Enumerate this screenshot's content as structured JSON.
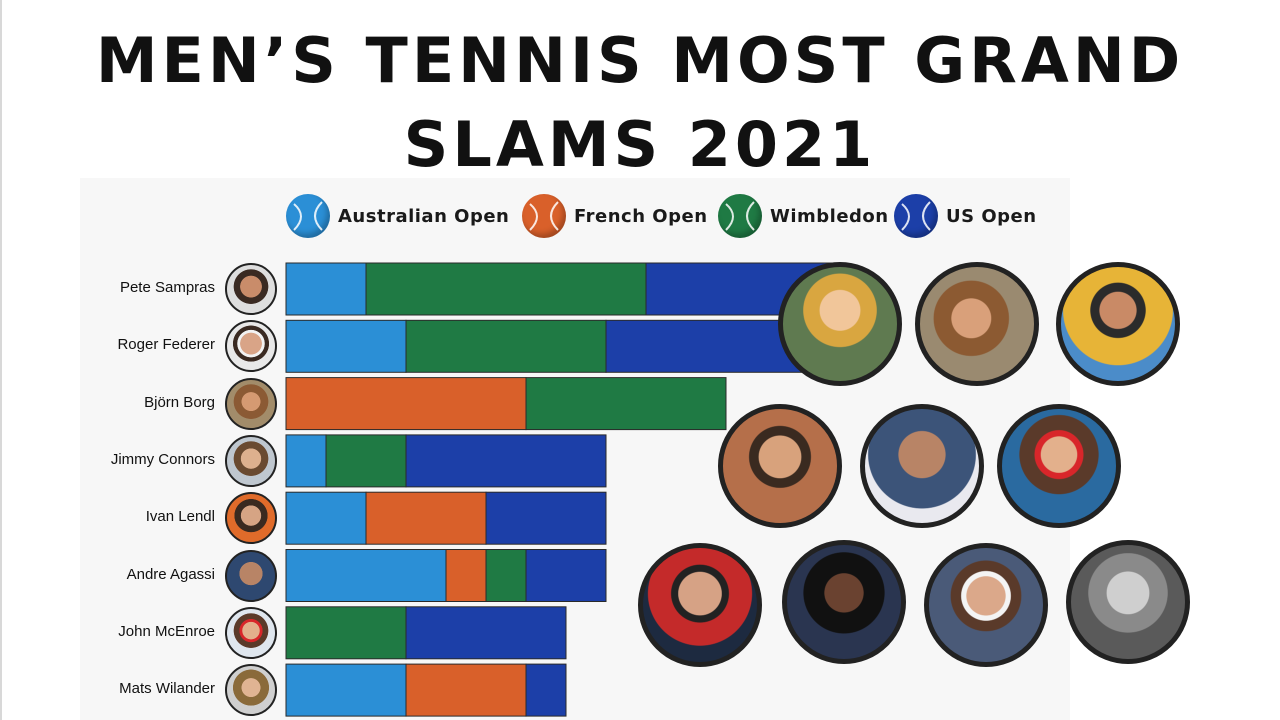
{
  "title_line1": "MEN’S TENNIS MOST GRAND",
  "title_line2": "SLAMS 2021",
  "colors": {
    "Australian Open": "#2b8fd6",
    "French Open": "#d9602a",
    "Wimbledon": "#1f7a44",
    "US Open": "#1c3fa8"
  },
  "legend": [
    {
      "label": "Australian Open",
      "icon": "tennis-ball-icon"
    },
    {
      "label": "French Open",
      "icon": "tennis-ball-icon"
    },
    {
      "label": "Wimbledon",
      "icon": "tennis-ball-icon"
    },
    {
      "label": "US Open",
      "icon": "tennis-ball-icon"
    }
  ],
  "chart_data": {
    "type": "bar",
    "orientation": "horizontal",
    "stacked": true,
    "title": "MEN’S TENNIS MOST GRAND SLAMS 2021",
    "categories": [
      "Pete Sampras",
      "Roger Federer",
      "Björn Borg",
      "Jimmy Connors",
      "Ivan Lendl",
      "Andre Agassi",
      "John McEnroe",
      "Mats Wilander"
    ],
    "series": [
      {
        "name": "Australian Open",
        "values": [
          2,
          3,
          0,
          1,
          2,
          4,
          0,
          3
        ]
      },
      {
        "name": "French Open",
        "values": [
          0,
          0,
          6,
          0,
          3,
          1,
          0,
          3
        ]
      },
      {
        "name": "Wimbledon",
        "values": [
          7,
          5,
          5,
          2,
          0,
          1,
          3,
          0
        ]
      },
      {
        "name": "US Open",
        "values": [
          5,
          5,
          0,
          5,
          3,
          2,
          4,
          1
        ]
      }
    ],
    "legend_position": "top",
    "grid": false
  },
  "photos": [
    {
      "name": "player-photo-blond"
    },
    {
      "name": "player-photo-headband"
    },
    {
      "name": "player-photo-yellow-shirt"
    },
    {
      "name": "player-photo-smiling"
    },
    {
      "name": "player-photo-bald"
    },
    {
      "name": "player-photo-red-headband"
    },
    {
      "name": "player-photo-red-shirt"
    },
    {
      "name": "player-photo-afro"
    },
    {
      "name": "player-photo-white-headband"
    },
    {
      "name": "player-photo-vintage"
    }
  ]
}
